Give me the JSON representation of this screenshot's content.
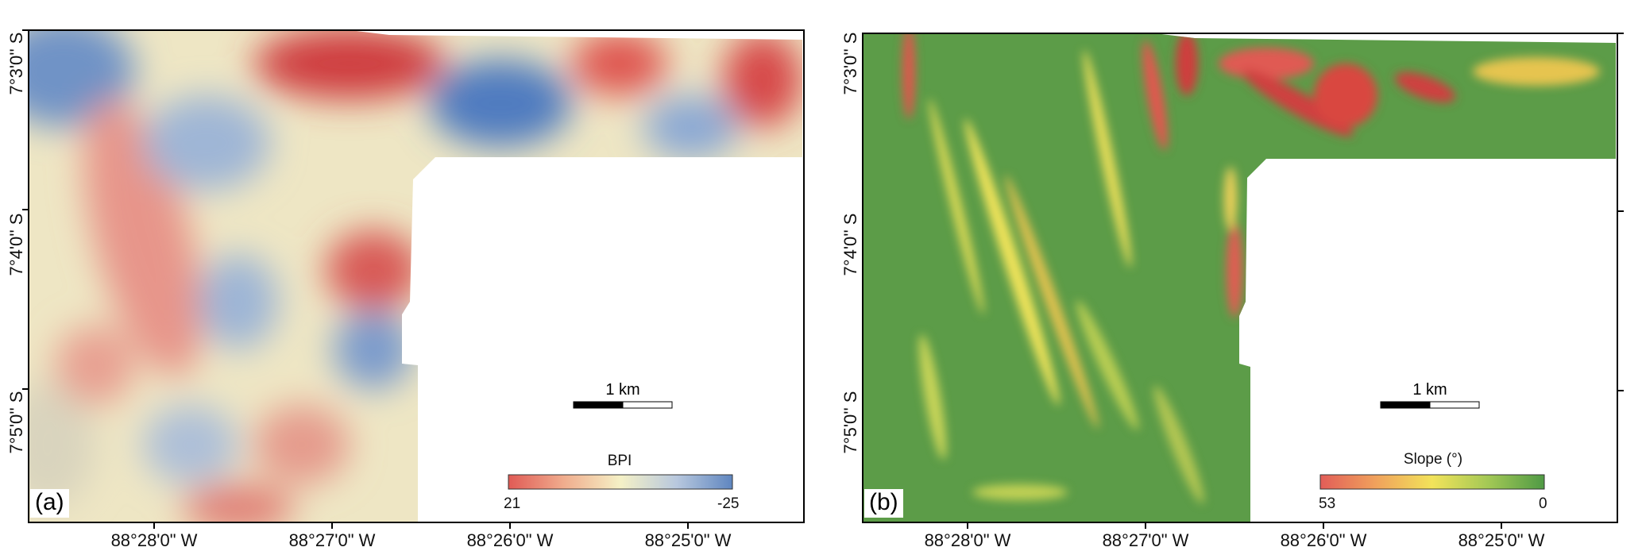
{
  "panels": [
    {
      "id": "a",
      "letter": "(a)",
      "legend": {
        "title": "BPI",
        "min_label": "21",
        "max_label": "-25",
        "colors": [
          "#e05a55",
          "#f0ad8e",
          "#f5f1c6",
          "#b8c8de",
          "#5f86c0"
        ]
      },
      "scale_label": "1 km"
    },
    {
      "id": "b",
      "letter": "(b)",
      "legend": {
        "title": "Slope (°)",
        "min_label": "53",
        "max_label": "0",
        "colors": [
          "#e25d58",
          "#f0a25c",
          "#f2e35a",
          "#a3c855",
          "#4f9a45"
        ]
      },
      "scale_label": "1 km"
    }
  ],
  "longitude_labels": [
    "88°28'0\" W",
    "88°27'0\" W",
    "88°26'0\" W",
    "88°25'0\" W"
  ],
  "latitude_labels": [
    "7°3'0'' S",
    "7°4'0'' S",
    "7°5'0'' S"
  ]
}
